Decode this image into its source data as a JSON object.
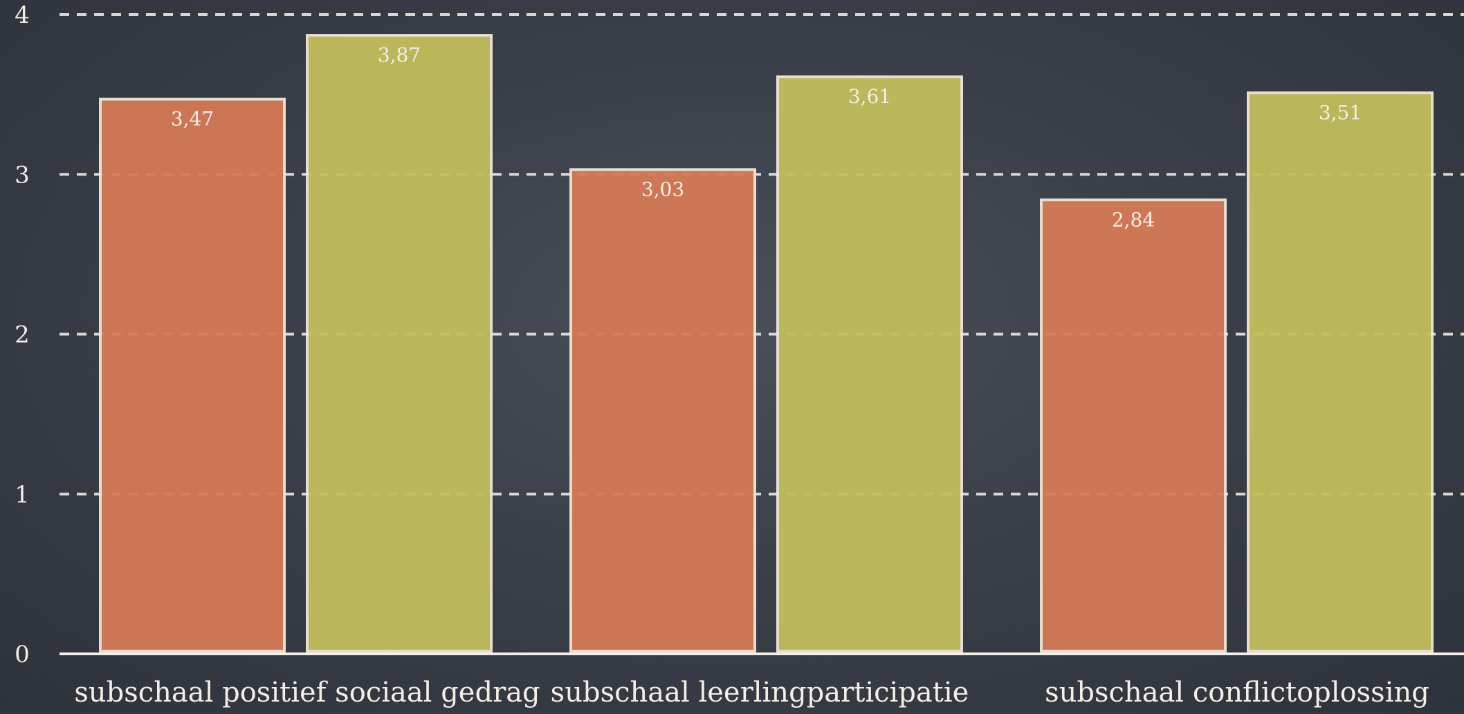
{
  "chart_data": {
    "type": "bar",
    "title": "",
    "xlabel": "",
    "ylabel": "",
    "ylim": [
      0,
      4
    ],
    "yticks": [
      "0",
      "1",
      "2",
      "3",
      "4"
    ],
    "grid": true,
    "colors": [
      "#d67a57",
      "#c2be5c"
    ],
    "categories": [
      "subschaal positief sociaal gedrag",
      "subschaal leerlingparticipatie",
      "subschaal conflictoplossing"
    ],
    "series": [
      {
        "values": [
          3.47,
          3.03,
          2.84
        ],
        "labels": [
          "3,47",
          "3,03",
          "2,84"
        ]
      },
      {
        "values": [
          3.87,
          3.61,
          3.51
        ],
        "labels": [
          "3,87",
          "3,61",
          "3,51"
        ]
      }
    ]
  }
}
